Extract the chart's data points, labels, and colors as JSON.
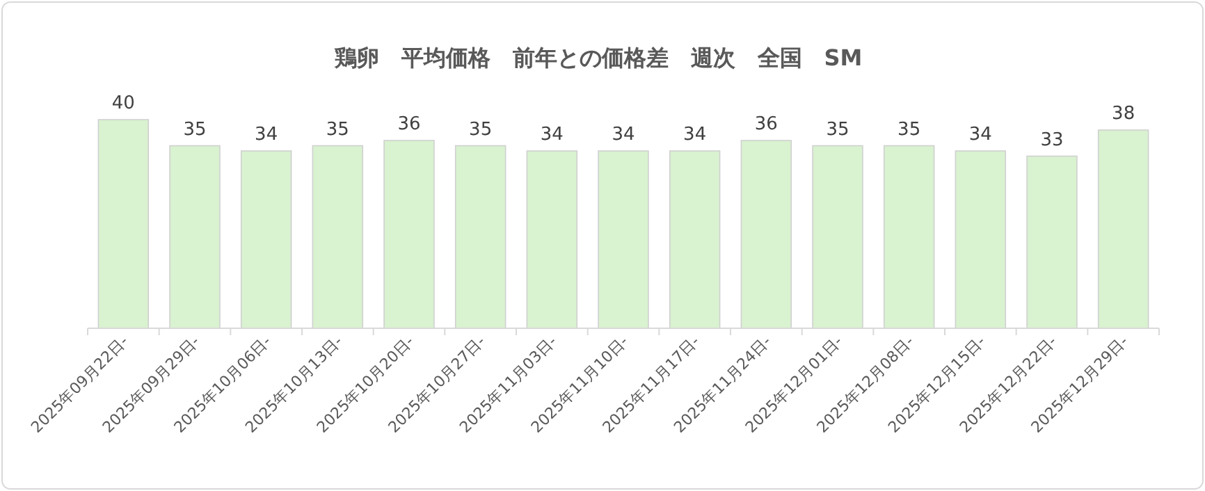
{
  "chart_data": {
    "type": "bar",
    "title": "鶏卵　平均価格　前年との価格差　週次　全国　SM",
    "categories": [
      "2025年09月22日-",
      "2025年09月29日-",
      "2025年10月06日-",
      "2025年10月13日-",
      "2025年10月20日-",
      "2025年10月27日-",
      "2025年11月03日-",
      "2025年11月10日-",
      "2025年11月17日-",
      "2025年11月24日-",
      "2025年12月01日-",
      "2025年12月08日-",
      "2025年12月15日-",
      "2025年12月22日-",
      "2025年12月29日-"
    ],
    "values": [
      40,
      35,
      34,
      35,
      36,
      35,
      34,
      34,
      34,
      36,
      35,
      35,
      34,
      33,
      38
    ],
    "color": "#d9f2d0",
    "data_labels": true
  }
}
